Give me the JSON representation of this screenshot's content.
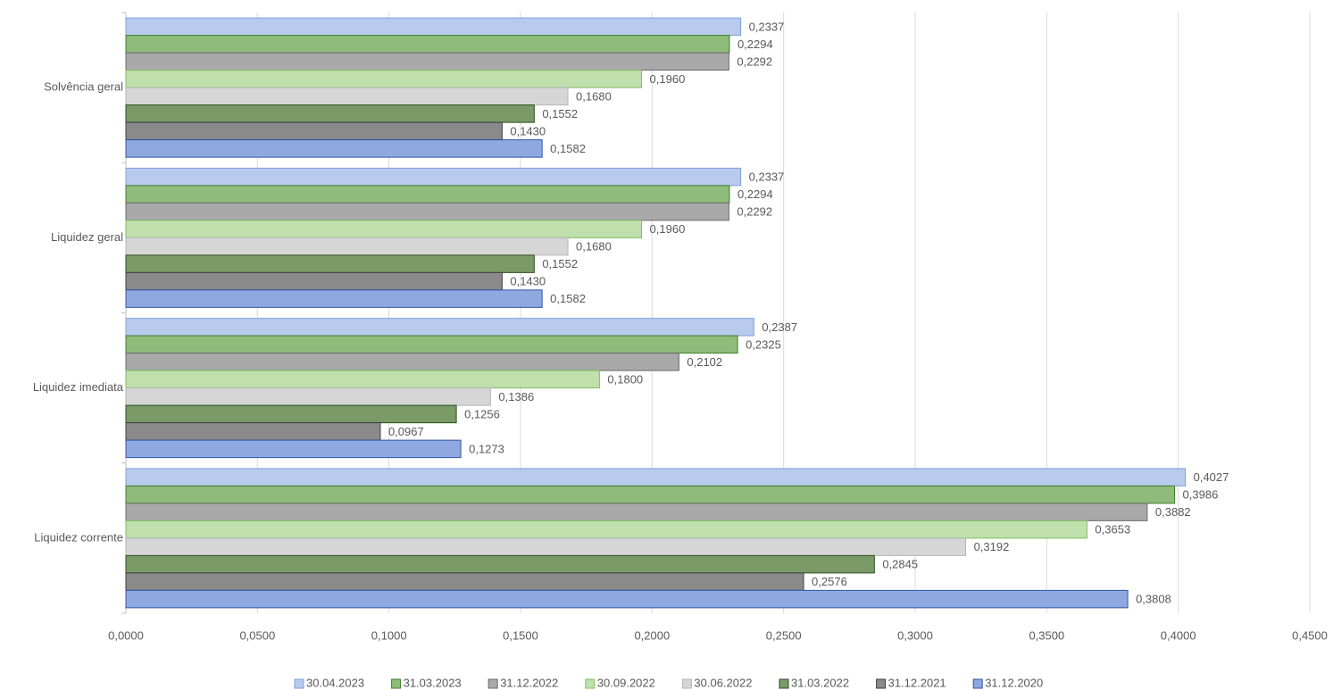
{
  "chart_data": {
    "type": "hbar",
    "categories": [
      "Solvência geral",
      "Liquidez geral",
      "Liquidez imediata",
      "Liquidez corrente"
    ],
    "series": [
      {
        "name": "30.04.2023",
        "color": "#b9cbec",
        "stroke": "#7f9fdc",
        "values": [
          0.2337,
          0.2337,
          0.2387,
          0.4027
        ],
        "value_labels": [
          "0,2337",
          "0,2337",
          "0,2387",
          "0,4027"
        ]
      },
      {
        "name": "31.03.2023",
        "color": "#8fbc7a",
        "stroke": "#3e7f2c",
        "values": [
          0.2294,
          0.2294,
          0.2325,
          0.3986
        ],
        "value_labels": [
          "0,2294",
          "0,2294",
          "0,2325",
          "0,3986"
        ]
      },
      {
        "name": "31.12.2022",
        "color": "#a9a9a9",
        "stroke": "#6b6b6b",
        "values": [
          0.2292,
          0.2292,
          0.2102,
          0.3882
        ],
        "value_labels": [
          "0,2292",
          "0,2292",
          "0,2102",
          "0,3882"
        ]
      },
      {
        "name": "30.09.2022",
        "color": "#bfe0ad",
        "stroke": "#7fbf60",
        "values": [
          0.196,
          0.196,
          0.18,
          0.3653
        ],
        "value_labels": [
          "0,1960",
          "0,1960",
          "0,1800",
          "0,3653"
        ]
      },
      {
        "name": "30.06.2022",
        "color": "#d6d6d6",
        "stroke": "#b5b5b5",
        "values": [
          0.168,
          0.168,
          0.1386,
          0.3192
        ],
        "value_labels": [
          "0,1680",
          "0,1680",
          "0,1386",
          "0,3192"
        ]
      },
      {
        "name": "31.03.2022",
        "color": "#7a9a68",
        "stroke": "#2c4f1d",
        "values": [
          0.1552,
          0.1552,
          0.1256,
          0.2845
        ],
        "value_labels": [
          "0,1552",
          "0,1552",
          "0,1256",
          "0,2845"
        ]
      },
      {
        "name": "31.12.2021",
        "color": "#8a8a8a",
        "stroke": "#3f3f3f",
        "values": [
          0.143,
          0.143,
          0.0967,
          0.2576
        ],
        "value_labels": [
          "0,1430",
          "0,1430",
          "0,0967",
          "0,2576"
        ]
      },
      {
        "name": "31.12.2020",
        "color": "#8fa9e0",
        "stroke": "#2f55a4",
        "values": [
          0.1582,
          0.1582,
          0.1273,
          0.3808
        ],
        "value_labels": [
          "0,1582",
          "0,1582",
          "0,1273",
          "0,3808"
        ]
      }
    ],
    "xlim": [
      0,
      0.45
    ],
    "xticks": [
      {
        "value": 0,
        "label": "0,0000"
      },
      {
        "value": 0.05,
        "label": "0,0500"
      },
      {
        "value": 0.1,
        "label": "0,1000"
      },
      {
        "value": 0.15,
        "label": "0,1500"
      },
      {
        "value": 0.2,
        "label": "0,2000"
      },
      {
        "value": 0.25,
        "label": "0,2500"
      },
      {
        "value": 0.3,
        "label": "0,3000"
      },
      {
        "value": 0.35,
        "label": "0,3500"
      },
      {
        "value": 0.4,
        "label": "0,4000"
      },
      {
        "value": 0.45,
        "label": "0,4500"
      }
    ],
    "grid": true,
    "legend": "bottom"
  }
}
